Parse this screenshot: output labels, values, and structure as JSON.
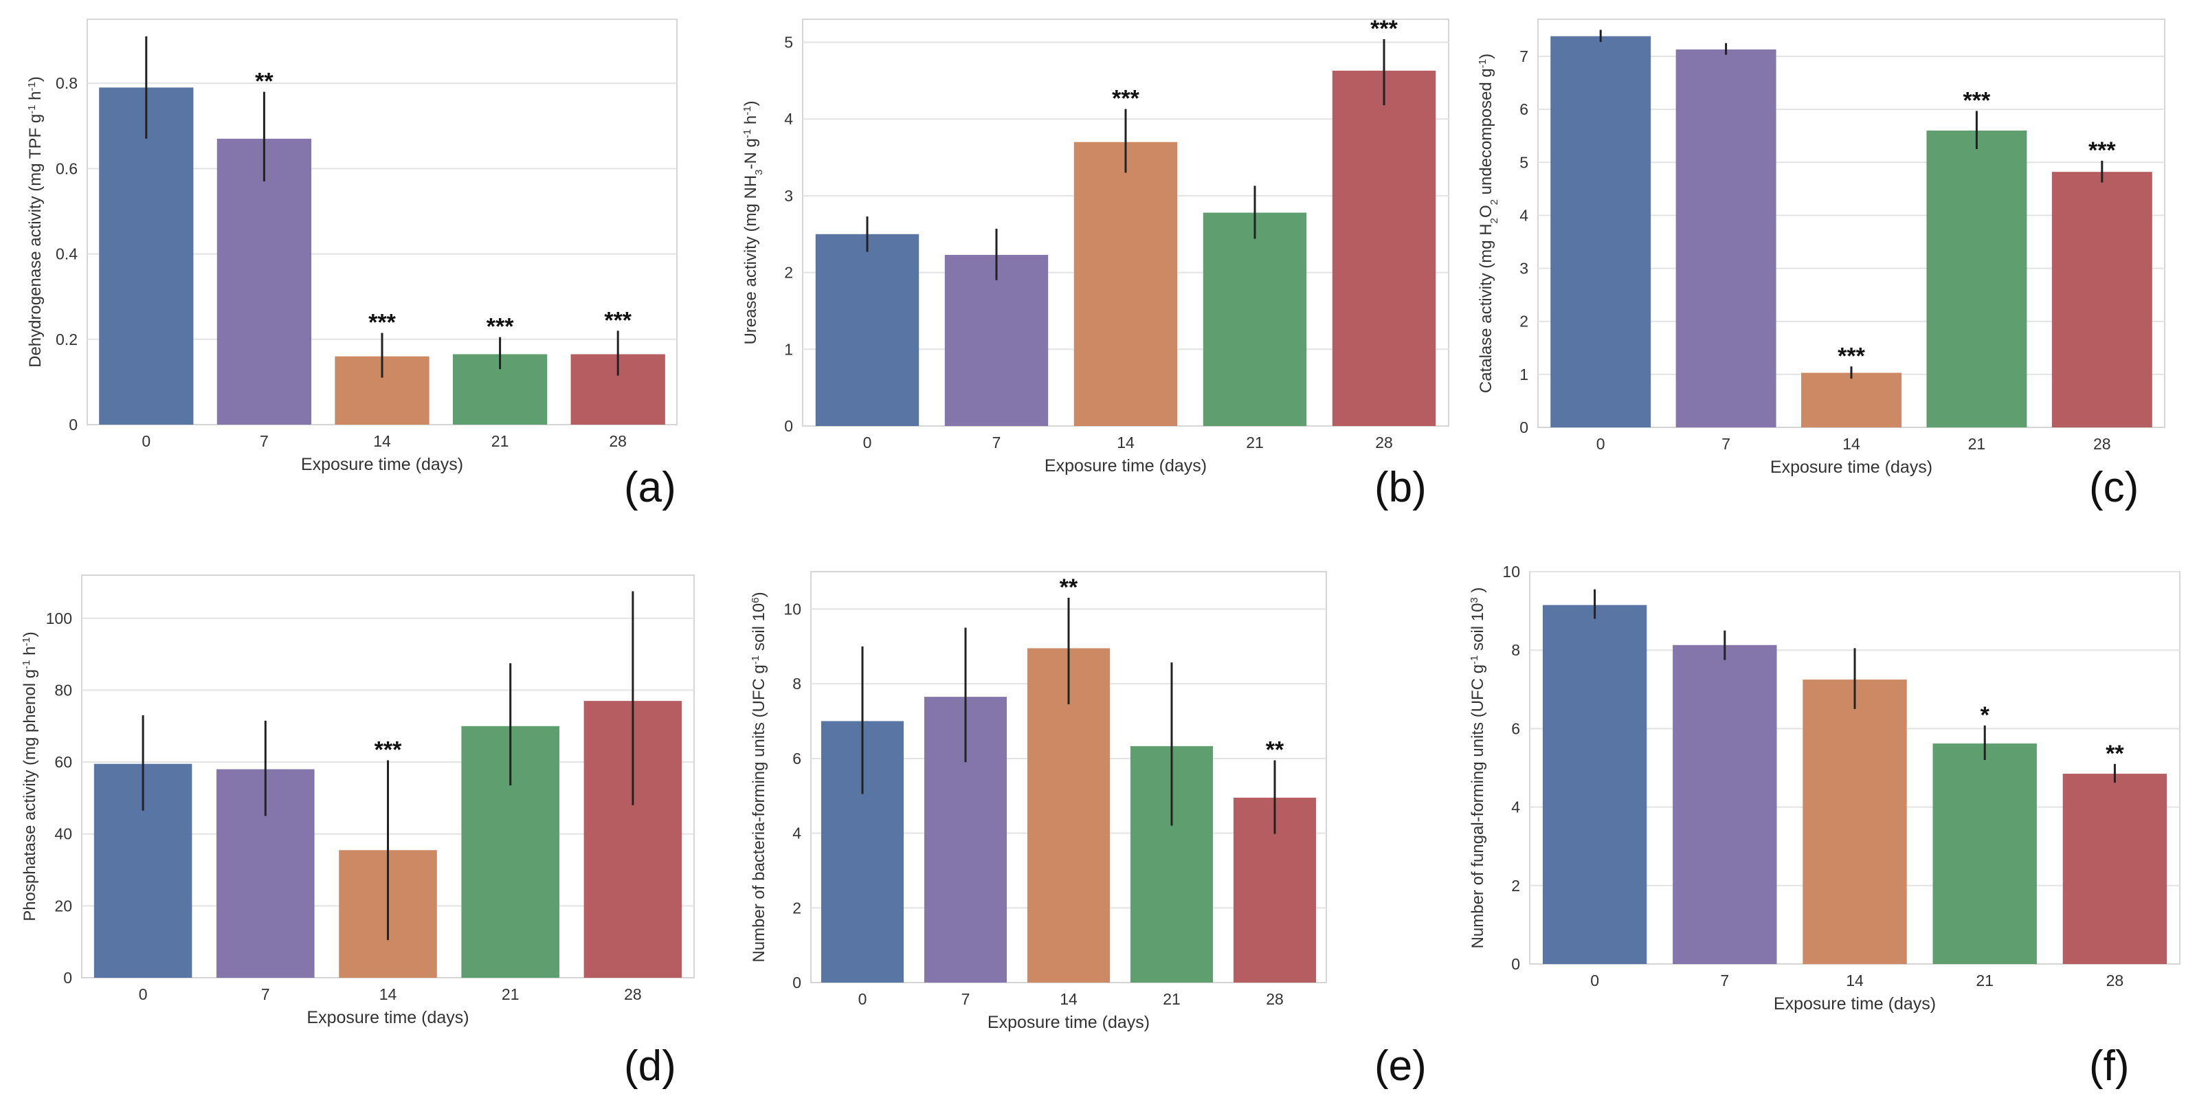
{
  "colors": {
    "bars": [
      "#5875a4",
      "#8475ab",
      "#cc8963",
      "#5f9e6e",
      "#b55d60"
    ],
    "grid": "#e3e3e3",
    "frame": "#d6d6d6",
    "error_bar": "#222222"
  },
  "chart_data": [
    {
      "id": "a",
      "type": "bar",
      "panel_label": "(a)",
      "categories": [
        "0",
        "7",
        "14",
        "21",
        "28"
      ],
      "values": [
        0.79,
        0.67,
        0.16,
        0.165,
        0.165
      ],
      "errors_low": [
        0.67,
        0.57,
        0.11,
        0.13,
        0.115
      ],
      "errors_high": [
        0.91,
        0.78,
        0.215,
        0.205,
        0.22
      ],
      "significance": [
        "",
        "**",
        "***",
        "***",
        "***"
      ],
      "xlabel": "Exposure time (days)",
      "ylabel": [
        {
          "t": "Dehydrogenase activity (mg TPF g"
        },
        {
          "t": "-1",
          "sup": true
        },
        {
          "t": " h"
        },
        {
          "t": "-1",
          "sup": true
        },
        {
          "t": ")"
        }
      ],
      "ylim": [
        0,
        0.95
      ],
      "yticks": [
        0,
        0.2,
        0.4,
        0.6,
        0.8
      ],
      "ytick_labels": [
        "0",
        "0.2",
        "0.4",
        "0.6",
        "0.8"
      ]
    },
    {
      "id": "b",
      "type": "bar",
      "panel_label": "(b)",
      "categories": [
        "0",
        "7",
        "14",
        "21",
        "28"
      ],
      "values": [
        2.5,
        2.23,
        3.7,
        2.78,
        4.63
      ],
      "errors_low": [
        2.27,
        1.9,
        3.3,
        2.44,
        4.18
      ],
      "errors_high": [
        2.73,
        2.57,
        4.13,
        3.13,
        5.04
      ],
      "significance": [
        "",
        "",
        "***",
        "",
        "***"
      ],
      "xlabel": "Exposure time (days)",
      "ylabel": [
        {
          "t": "Urease activity (mg NH"
        },
        {
          "t": "3",
          "sub": true
        },
        {
          "t": "-N g"
        },
        {
          "t": "-1",
          "sup": true
        },
        {
          "t": " h"
        },
        {
          "t": "-1",
          "sup": true
        },
        {
          "t": ")"
        }
      ],
      "ylim": [
        0,
        5.3
      ],
      "yticks": [
        0,
        1,
        2,
        3,
        4,
        5
      ],
      "ytick_labels": [
        "0",
        "1",
        "2",
        "3",
        "4",
        "5"
      ]
    },
    {
      "id": "c",
      "type": "bar",
      "panel_label": "(c)",
      "categories": [
        "0",
        "7",
        "14",
        "21",
        "28"
      ],
      "values": [
        7.38,
        7.13,
        1.03,
        5.6,
        4.82
      ],
      "errors_low": [
        7.27,
        7.03,
        0.92,
        5.25,
        4.62
      ],
      "errors_high": [
        7.5,
        7.25,
        1.15,
        5.97,
        5.03
      ],
      "significance": [
        "",
        "",
        "***",
        "***",
        "***"
      ],
      "xlabel": "Exposure time (days)",
      "ylabel": [
        {
          "t": "Catalase activity (mg H"
        },
        {
          "t": "2",
          "sub": true
        },
        {
          "t": "O"
        },
        {
          "t": "2",
          "sub": true
        },
        {
          "t": " undecomposed g"
        },
        {
          "t": "-1",
          "sup": true
        },
        {
          "t": ")"
        }
      ],
      "ylim": [
        0,
        7.7
      ],
      "yticks": [
        0,
        1,
        2,
        3,
        4,
        5,
        6,
        7
      ],
      "ytick_labels": [
        "0",
        "1",
        "2",
        "3",
        "4",
        "5",
        "6",
        "7"
      ]
    },
    {
      "id": "d",
      "type": "bar",
      "panel_label": "(d)",
      "categories": [
        "0",
        "7",
        "14",
        "21",
        "28"
      ],
      "values": [
        59.5,
        58,
        35.5,
        70,
        77
      ],
      "errors_low": [
        46.5,
        45,
        10.5,
        53.5,
        48
      ],
      "errors_high": [
        73,
        71.5,
        60.5,
        87.5,
        107.5
      ],
      "significance": [
        "",
        "",
        "***",
        "",
        ""
      ],
      "xlabel": "Exposure time (days)",
      "ylabel": [
        {
          "t": "Phosphatase activity  (mg phenol  g"
        },
        {
          "t": "-1",
          "sup": true
        },
        {
          "t": " h"
        },
        {
          "t": "-1",
          "sup": true
        },
        {
          "t": ")"
        }
      ],
      "ylim": [
        0,
        112
      ],
      "yticks": [
        0,
        20,
        40,
        60,
        80,
        100
      ],
      "ytick_labels": [
        "0",
        "20",
        "40",
        "60",
        "80",
        "100"
      ]
    },
    {
      "id": "e",
      "type": "bar",
      "panel_label": "(e)",
      "categories": [
        "0",
        "7",
        "14",
        "21",
        "28"
      ],
      "values": [
        7.0,
        7.65,
        8.95,
        6.33,
        4.95
      ],
      "errors_low": [
        5.05,
        5.9,
        7.45,
        4.2,
        3.98
      ],
      "errors_high": [
        9.0,
        9.5,
        10.3,
        8.57,
        5.95
      ],
      "significance": [
        "",
        "",
        "**",
        "",
        "**"
      ],
      "xlabel": "Exposure time (days)",
      "ylabel": [
        {
          "t": "Number of bacteria-forming units  (UFC  g"
        },
        {
          "t": "-1",
          "sup": true
        },
        {
          "t": " soil  10"
        },
        {
          "t": "6",
          "sup": true
        },
        {
          "t": ")"
        }
      ],
      "ylim": [
        0,
        11
      ],
      "yticks": [
        0,
        2,
        4,
        6,
        8,
        10
      ],
      "ytick_labels": [
        "0",
        "2",
        "4",
        "6",
        "8",
        "10"
      ]
    },
    {
      "id": "f",
      "type": "bar",
      "panel_label": "(f)",
      "categories": [
        "0",
        "7",
        "14",
        "21",
        "28"
      ],
      "values": [
        9.15,
        8.13,
        7.25,
        5.62,
        4.85
      ],
      "errors_low": [
        8.8,
        7.75,
        6.5,
        5.2,
        4.62
      ],
      "errors_high": [
        9.55,
        8.5,
        8.05,
        6.08,
        5.1
      ],
      "significance": [
        "",
        "",
        "",
        "*",
        "**"
      ],
      "xlabel": "Exposure time (days)",
      "ylabel": [
        {
          "t": "Number of fungal-forming units (UFC g"
        },
        {
          "t": "-1",
          "sup": true
        },
        {
          "t": "  soil  10"
        },
        {
          "t": "3",
          "sup": true
        },
        {
          "t": " )"
        }
      ],
      "ylim": [
        0,
        10
      ],
      "yticks": [
        0,
        2,
        4,
        6,
        8,
        10
      ],
      "ytick_labels": [
        "0",
        "2",
        "4",
        "6",
        "8",
        "10"
      ]
    }
  ]
}
